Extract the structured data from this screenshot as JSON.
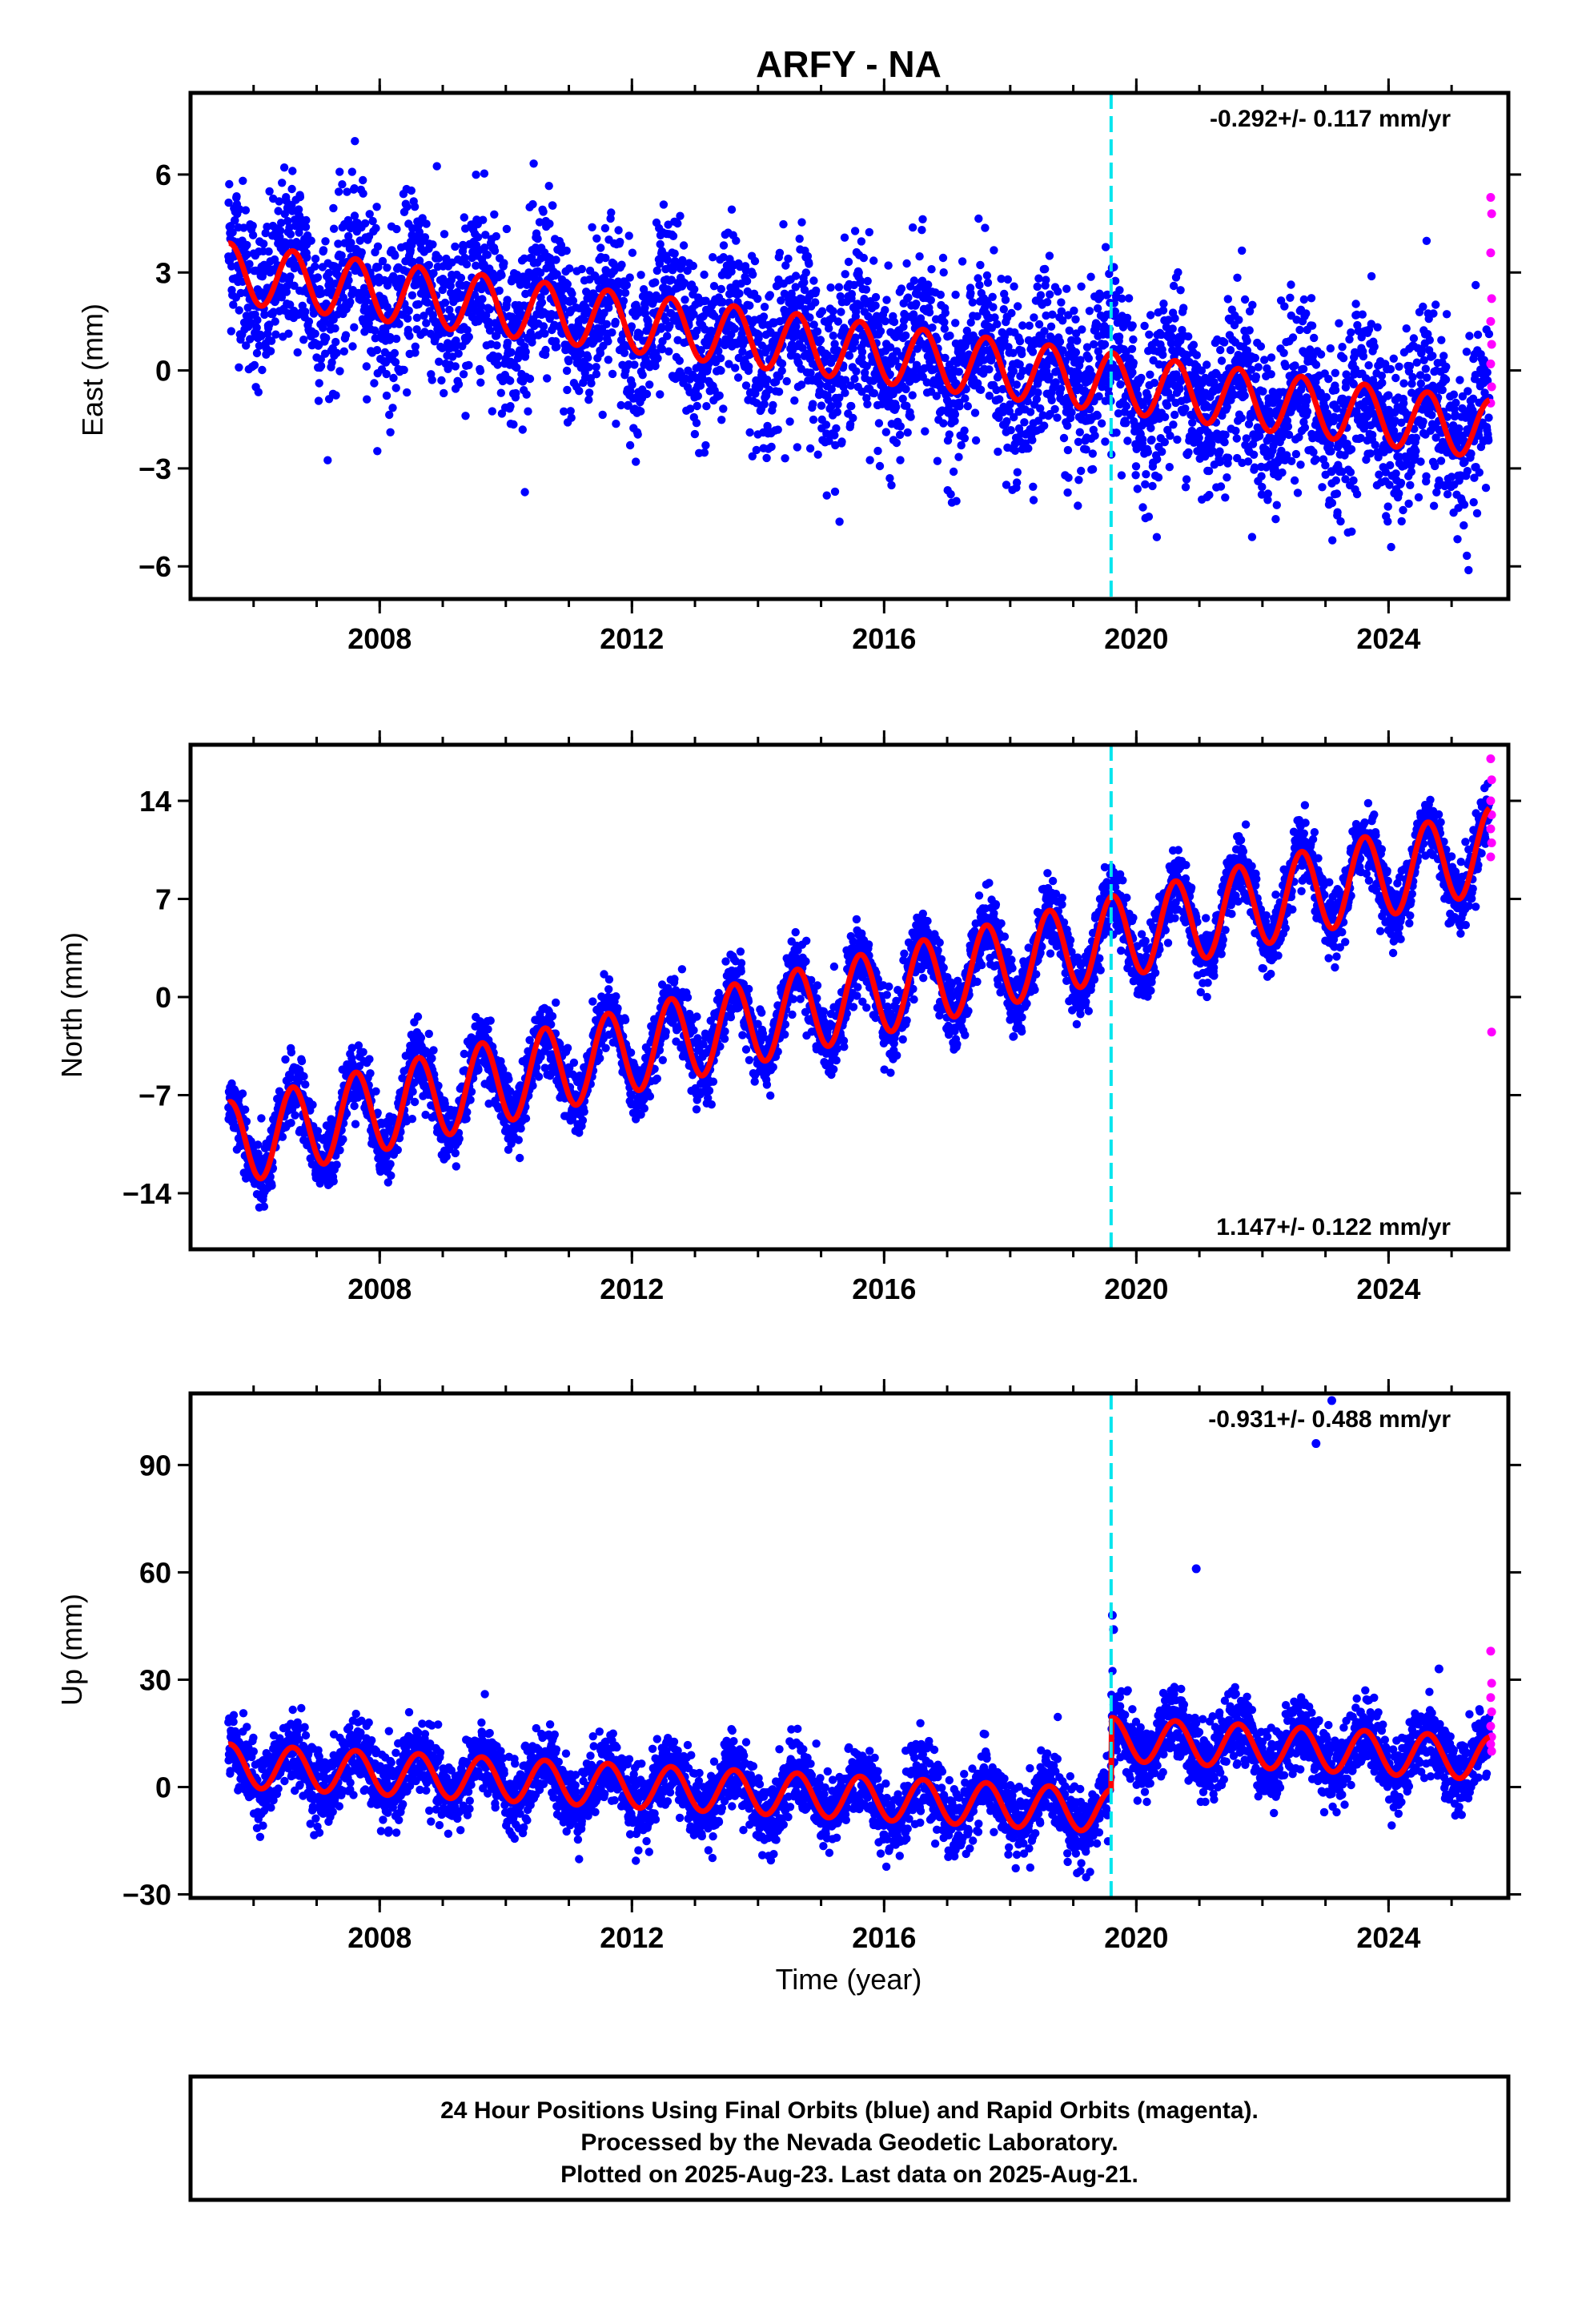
{
  "chart_data": {
    "type": "scatter",
    "title": "ARFY - NA",
    "xlabel": "Time (year)",
    "x_ticks": [
      2008,
      2012,
      2016,
      2020,
      2024
    ],
    "xlim": [
      2005.0,
      2025.9
    ],
    "event_line": {
      "x": 2019.6,
      "color": "#00e5ee"
    },
    "series_colors": {
      "final": "#0000ff",
      "rapid": "#ff00ff",
      "model": "#ff0000"
    },
    "panels": [
      {
        "name": "east",
        "ylabel": "East (mm)",
        "ylim": [
          -7,
          8.5
        ],
        "y_ticks": [
          6,
          3,
          0,
          -3,
          -6
        ],
        "y_tick_labels": [
          "6",
          "3",
          "0",
          "−3",
          "−6"
        ],
        "rate_text": "-0.292+/- 0.117 mm/yr",
        "rate_position": "top-right",
        "start": 2005.6,
        "end": 2025.6,
        "model": {
          "y0": 3.0,
          "trend": -0.24,
          "amp": 0.9,
          "offset": 0.0,
          "phase": 0.62
        },
        "noise": 1.3,
        "rapid_points": [
          5.3,
          4.8,
          3.6,
          2.2,
          1.5,
          0.8,
          0.2,
          -0.5,
          -1.0
        ]
      },
      {
        "name": "north",
        "ylabel": "North (mm)",
        "ylim": [
          -18,
          18
        ],
        "y_ticks": [
          14,
          7,
          0,
          -7,
          -14
        ],
        "y_tick_labels": [
          "14",
          "7",
          "0",
          "−7",
          "−14"
        ],
        "rate_text": "1.147+/- 0.122 mm/yr",
        "rate_position": "bottom-right",
        "start": 2005.6,
        "end": 2025.6,
        "model": {
          "y0": -10.5,
          "trend": 1.05,
          "amp": 3.0,
          "offset": 0.0,
          "phase": 0.62
        },
        "noise": 1.2,
        "rapid_points": [
          17.0,
          15.5,
          14.0,
          13.0,
          12.0,
          11.0,
          10.0,
          -2.5
        ]
      },
      {
        "name": "up",
        "ylabel": "Up (mm)",
        "ylim": [
          -31,
          110
        ],
        "y_ticks": [
          90,
          60,
          30,
          0,
          -30
        ],
        "y_tick_labels": [
          "90",
          "60",
          "30",
          "0",
          "−30"
        ],
        "rate_text": "-0.931+/- 0.488 mm/yr",
        "rate_position": "top-right",
        "start": 2005.6,
        "end": 2025.6,
        "model": {
          "y0": 6.0,
          "trend": -0.9,
          "amp": 6.0,
          "offset": 20.0,
          "phase": 0.62
        },
        "noise": 5.0,
        "rapid_points": [
          38,
          29,
          25,
          21,
          17,
          14,
          12,
          10
        ],
        "outliers": [
          {
            "x": 2019.62,
            "y": 48
          },
          {
            "x": 2019.64,
            "y": 44
          },
          {
            "x": 2020.95,
            "y": 61
          },
          {
            "x": 2022.85,
            "y": 96
          },
          {
            "x": 2023.1,
            "y": 108
          },
          {
            "x": 2024.8,
            "y": 33
          }
        ]
      }
    ]
  },
  "footer": {
    "line1": "24 Hour Positions Using Final Orbits (blue) and Rapid Orbits (magenta).",
    "line2": "Processed by the Nevada Geodetic Laboratory.",
    "line3": "Plotted on 2025-Aug-23. Last data on 2025-Aug-21."
  }
}
